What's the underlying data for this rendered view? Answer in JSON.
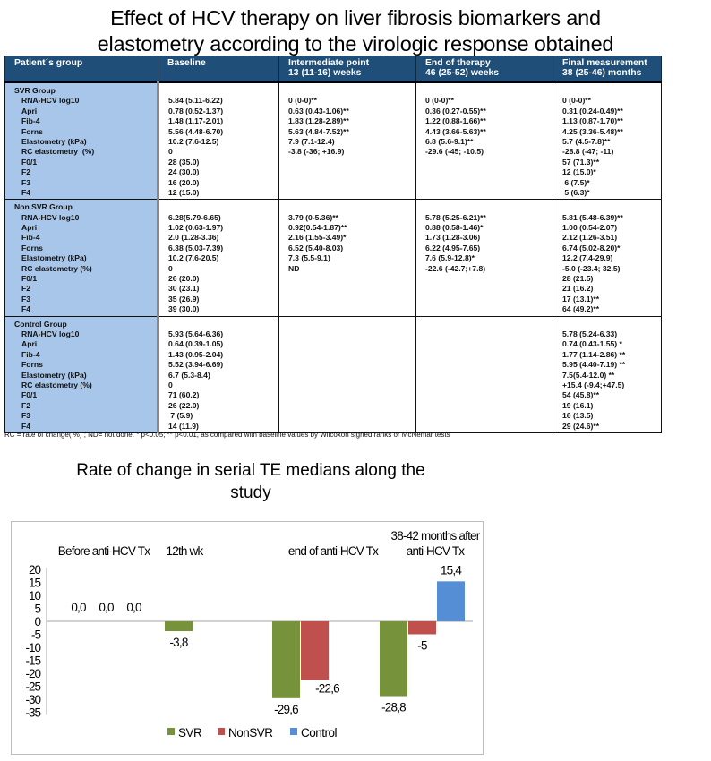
{
  "title": {
    "line1": "Effect of HCV therapy on liver fibrosis biomarkers and",
    "line2": "elastometry according to the virologic response obtained"
  },
  "table": {
    "headers": [
      {
        "line1": "Patient´s group",
        "line2": ""
      },
      {
        "line1": "Baseline",
        "line2": ""
      },
      {
        "line1": "Intermediate point",
        "line2": " 13 (11-16) weeks"
      },
      {
        "line1": "End of therapy",
        "line2": " 46 (25-52) weeks"
      },
      {
        "line1": "Final measurement",
        "line2": "38 (25-46) months"
      }
    ],
    "groups": [
      {
        "name": "SVR Group",
        "rows": [
          {
            "label": "RNA-HCV log10",
            "baseline": "5.84 (5.11-6.22)",
            "intermediate": "0 (0-0)**",
            "end": "0 (0-0)**",
            "final": "0 (0-0)**"
          },
          {
            "label": "Apri",
            "baseline": "0.78 (0.52-1.37)",
            "intermediate": "0.63 (0.43-1.06)**",
            "end": "0.36 (0.27-0.55)**",
            "final": "0.31 (0.24-0.49)**"
          },
          {
            "label": "Fib-4",
            "baseline": "1.48 (1.17-2.01)",
            "intermediate": "1.83 (1.28-2.89)**",
            "end": "1.22 (0.88-1.66)**",
            "final": "1.13 (0.87-1.70)**"
          },
          {
            "label": "Forns",
            "baseline": "5.56 (4.48-6.70)",
            "intermediate": "5.63 (4.84-7.52)**",
            "end": "4.43 (3.66-5.63)**",
            "final": "4.25 (3.36-5.48)**"
          },
          {
            "label": "Elastometry (kPa)",
            "baseline": "10.2 (7.6-12.5)",
            "intermediate": "7.9 (7.1-12.4)",
            "end": "6.8 (5.6-9.1)**",
            "final": "5.7 (4.5-7.8)**"
          },
          {
            "label": "RC elastometry  (%)",
            "baseline": "0",
            "intermediate": "-3.8 (-36; +16.9)",
            "end": "-29.6 (-45; -10.5)",
            "final": "-28.8 (-47; -11)"
          },
          {
            "label": "F0/1",
            "baseline": "28 (35.0)",
            "intermediate": "",
            "end": "",
            "final": "57 (71.3)**"
          },
          {
            "label": "F2",
            "baseline": "24 (30.0)",
            "intermediate": "",
            "end": "",
            "final": "12 (15.0)*"
          },
          {
            "label": "F3",
            "baseline": "16 (20.0)",
            "intermediate": "",
            "end": "",
            "final": " 6 (7.5)*"
          },
          {
            "label": "F4",
            "baseline": "12 (15.0)",
            "intermediate": "",
            "end": "",
            "final": " 5 (6.3)*"
          }
        ]
      },
      {
        "name": "Non SVR Group",
        "rows": [
          {
            "label": "RNA-HCV log10",
            "baseline": "6.28(5.79-6.65)",
            "intermediate": "3.79 (0-5.36)**",
            "end": "5.78 (5.25-6.21)**",
            "final": "5.81 (5.48-6.39)**"
          },
          {
            "label": "Apri",
            "baseline": "1.02 (0.63-1.97)",
            "intermediate": "0.92(0.54-1.87)**",
            "end": "0.88 (0.58-1.46)*",
            "final": "1.00 (0.54-2.07)"
          },
          {
            "label": "Fib-4",
            "baseline": "2.0 (1.28-3.36)",
            "intermediate": "2.16 (1.55-3.49)*",
            "end": "1.73 (1.28-3.06)",
            "final": "2.12 (1.26-3.51)"
          },
          {
            "label": "Forns",
            "baseline": "6.38 (5.03-7.39)",
            "intermediate": "6.52 (5.40-8.03)",
            "end": "6.22 (4.95-7.65)",
            "final": "6.74 (5.02-8.20)*"
          },
          {
            "label": "Elastometry (kPa)",
            "baseline": "10.2 (7.6-20.5)",
            "intermediate": "7.3 (5.5-9.1)",
            "end": "7.6 (5.9-12.8)*",
            "final": "12.2 (7.4-29.9)"
          },
          {
            "label": "RC elastometry (%)",
            "baseline": "0",
            "intermediate": "ND",
            "end": "-22.6 (-42.7;+7.8)",
            "final": "-5.0 (-23.4; 32.5)"
          },
          {
            "label": "F0/1",
            "baseline": "26 (20.0)",
            "intermediate": "",
            "end": "",
            "final": "28 (21.5)"
          },
          {
            "label": "F2",
            "baseline": "30 (23.1)",
            "intermediate": "",
            "end": "",
            "final": "21 (16.2)"
          },
          {
            "label": "F3",
            "baseline": "35 (26.9)",
            "intermediate": "",
            "end": "",
            "final": "17 (13.1)**"
          },
          {
            "label": "F4",
            "baseline": "39 (30.0)",
            "intermediate": "",
            "end": "",
            "final": "64 (49.2)**"
          }
        ]
      },
      {
        "name": "Control Group",
        "rows": [
          {
            "label": "RNA-HCV log10",
            "baseline": "5.93 (5.64-6.36)",
            "intermediate": "",
            "end": "",
            "final": "5.78 (5.24-6.33)"
          },
          {
            "label": "Apri",
            "baseline": "0.64 (0.39-1.05)",
            "intermediate": "",
            "end": "",
            "final": "0.74 (0.43-1.55) *"
          },
          {
            "label": "Fib-4",
            "baseline": "1.43 (0.95-2.04)",
            "intermediate": "",
            "end": "",
            "final": "1.77 (1.14-2.86) **"
          },
          {
            "label": "Forns",
            "baseline": "5.52 (3.94-6.69)",
            "intermediate": "",
            "end": "",
            "final": "5.95 (4.40-7.19) **"
          },
          {
            "label": "Elastometry (kPa)",
            "baseline": "6.7 (5.3-8.4)",
            "intermediate": "",
            "end": "",
            "final": "7.5(5.4-12.0) **"
          },
          {
            "label": "RC elastometry (%)",
            "baseline": "0",
            "intermediate": "",
            "end": "",
            "final": "+15.4 (-9.4;+47.5)"
          },
          {
            "label": "F0/1",
            "baseline": "71 (60.2)",
            "intermediate": "",
            "end": "",
            "final": "54 (45.8)**"
          },
          {
            "label": "F2",
            "baseline": "26 (22.0)",
            "intermediate": "",
            "end": "",
            "final": "19 (16.1)"
          },
          {
            "label": "F3",
            "baseline": " 7 (5.9)",
            "intermediate": "",
            "end": "",
            "final": "16 (13.5)"
          },
          {
            "label": "F4",
            "baseline": "14 (11.9)",
            "intermediate": "",
            "end": "",
            "final": "29 (24.6)**"
          }
        ]
      }
    ],
    "footnote": "RC = rate of change( %) ; ND= not done. * p<0.05; ** p<0.01, as compared with baseline values by Wilcoxon signed ranks or McNemar tests"
  },
  "colors": {
    "header_bg": "#1f4e79",
    "group_col_bg": "#a8c6ea",
    "svr": "#76933c",
    "nonsvr": "#c0504d",
    "control": "#558ed5"
  },
  "chart_data": {
    "type": "bar",
    "title": "Rate of change in serial TE medians along the study",
    "title_line1": "Rate of change in serial TE medians along the",
    "title_line2": "study",
    "categories": [
      "Before anti-HCV Tx",
      "12th wk",
      "end of anti-HCV Tx",
      "38-42 months after anti-HCV Tx"
    ],
    "category_labels": [
      [
        "Before anti-HCV Tx"
      ],
      [
        "12th wk"
      ],
      [
        "end of anti-HCV Tx"
      ],
      [
        "38-42 months after",
        "anti-HCV Tx"
      ]
    ],
    "series": [
      {
        "name": "SVR",
        "color": "#76933c",
        "values": [
          0.0,
          -3.8,
          -29.6,
          -28.8
        ],
        "labels": [
          "0,0",
          "-3,8",
          "-29,6",
          "-28,8"
        ]
      },
      {
        "name": "NonSVR",
        "color": "#c0504d",
        "values": [
          0.0,
          null,
          -22.6,
          -5.0
        ],
        "labels": [
          "0,0",
          "",
          "-22,6",
          "-5"
        ]
      },
      {
        "name": "Control",
        "color": "#558ed5",
        "values": [
          0.0,
          null,
          null,
          15.4
        ],
        "labels": [
          "0,0",
          "",
          "",
          "15,4"
        ]
      }
    ],
    "xlabel": "",
    "ylabel": "",
    "ylim": [
      -35,
      20
    ],
    "yticks": [
      20,
      15,
      10,
      5,
      0,
      -5,
      -10,
      -15,
      -20,
      -25,
      -30,
      -35
    ],
    "ytick_labels": [
      "20",
      "15",
      "10",
      "5",
      "0",
      "-5",
      "-10",
      "-15",
      "-20",
      "-25",
      "-30",
      "-35"
    ],
    "grid": false,
    "legend_position": "bottom",
    "legend": [
      "SVR",
      "NonSVR",
      "Control"
    ]
  }
}
